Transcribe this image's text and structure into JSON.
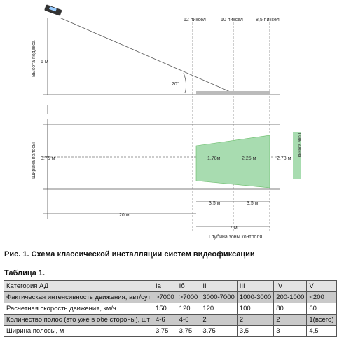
{
  "diagram": {
    "pixel_labels": [
      "12 пиксел",
      "10 пиксел",
      "8,5 пиксел"
    ],
    "height_axis": "Высота подвеса",
    "height_value": "6 м",
    "angle": "20°",
    "width_axis": "Ширина полосы",
    "width_value": "3,75 м",
    "widths": [
      "1,78м",
      "2,25 м",
      "2,73 м"
    ],
    "segments": [
      "3,5 м",
      "3,5 м"
    ],
    "distance": "20 м",
    "depth_value": "7 м",
    "depth_label": "Глубина зоны контроля",
    "field_label": "поле зрения"
  },
  "caption": "Рис. 1. Схема классической инсталляции систем видеофиксации",
  "table": {
    "title": "Таблица 1.",
    "header": [
      "Категория АД",
      "Iа",
      "Iб",
      "II",
      "III",
      "IV",
      "V"
    ],
    "rows": [
      [
        "Фактическая интенсивность движения, авт/сут",
        ">7000",
        ">7000",
        "3000-7000",
        "1000-3000",
        "200-1000",
        "<200"
      ],
      [
        "Расчетная скорость движения, км/ч",
        "150",
        "120",
        "120",
        "100",
        "80",
        "60"
      ],
      [
        "Количество полос (это уже в обе стороны), шт",
        "4-6",
        "4-6",
        "2",
        "2",
        "2",
        "1(всего)"
      ],
      [
        "Ширина полосы, м",
        "3,75",
        "3,75",
        "3,75",
        "3,5",
        "3",
        "4,5"
      ]
    ]
  }
}
